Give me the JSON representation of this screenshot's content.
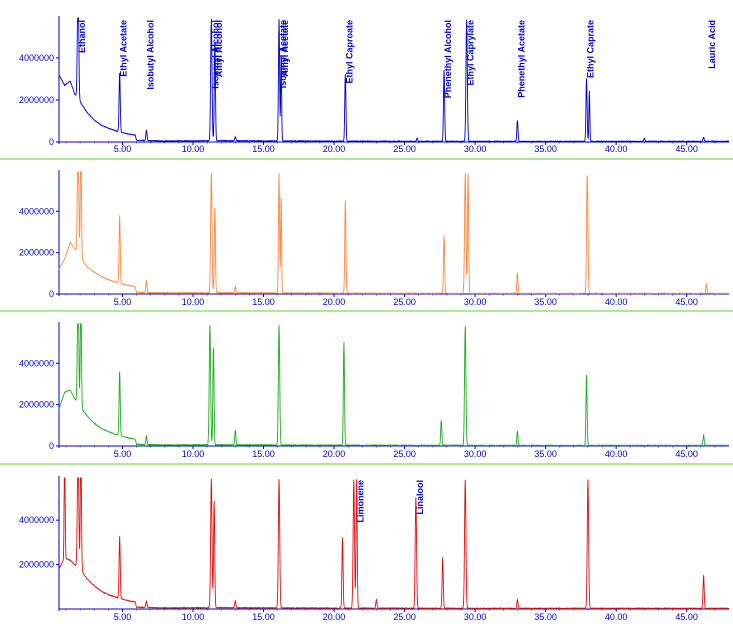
{
  "chart_data": [
    {
      "type": "line",
      "series": [
        {
          "color": "#0000cc",
          "baseline_points": [
            [
              0.5,
              3200000
            ],
            [
              0.9,
              2700000
            ],
            [
              1.3,
              2900000
            ],
            [
              1.6,
              2300000
            ],
            [
              2.0,
              1900000
            ],
            [
              2.5,
              1400000
            ],
            [
              3.0,
              1050000
            ],
            [
              3.5,
              800000
            ],
            [
              4.0,
              650000
            ],
            [
              4.5,
              540000
            ],
            [
              5.0,
              450000
            ],
            [
              5.5,
              370000
            ],
            [
              5.9,
              330000
            ],
            [
              6.0,
              80000
            ],
            [
              8,
              50000
            ],
            [
              12,
              60000
            ],
            [
              20,
              40000
            ],
            [
              30,
              30000
            ],
            [
              40,
              30000
            ],
            [
              47.5,
              30000
            ]
          ],
          "peaks": [
            [
              1.85,
              5800000,
              0.12
            ],
            [
              4.8,
              2800000,
              0.1
            ],
            [
              6.7,
              500000,
              0.1
            ],
            [
              11.3,
              5800000,
              0.12
            ],
            [
              11.55,
              4800000,
              0.1
            ],
            [
              13.0,
              200000,
              0.1
            ],
            [
              16.1,
              5800000,
              0.1
            ],
            [
              16.25,
              4200000,
              0.08
            ],
            [
              20.8,
              3200000,
              0.1
            ],
            [
              25.9,
              150000,
              0.1
            ],
            [
              27.8,
              3400000,
              0.1
            ],
            [
              29.4,
              5800000,
              0.12
            ],
            [
              33.0,
              1000000,
              0.1
            ],
            [
              37.9,
              3000000,
              0.1
            ],
            [
              38.1,
              2400000,
              0.08
            ],
            [
              42.0,
              150000,
              0.1
            ],
            [
              46.2,
              200000,
              0.1
            ]
          ]
        }
      ],
      "x_ticks": [
        "5.00",
        "10.00",
        "15.00",
        "20.00",
        "25.00",
        "30.00",
        "35.00",
        "40.00",
        "45.00"
      ],
      "x_tick_values": [
        5,
        10,
        15,
        20,
        25,
        30,
        35,
        40,
        45
      ],
      "y_ticks": [
        "0",
        "2000000",
        "4000000"
      ],
      "y_tick_values": [
        0,
        2000000,
        4000000
      ],
      "xlim": [
        0.5,
        48
      ],
      "ylim": [
        0,
        5900000
      ],
      "labels": [
        {
          "text": "Ethanol",
          "x": 1.85
        },
        {
          "text": "Ethyl Acetate",
          "x": 4.8
        },
        {
          "text": "Isobutyl Alcohol",
          "x": 6.7
        },
        {
          "text": "Isoamyl Alcohol",
          "x": 11.3
        },
        {
          "text": "Amyl Alcohol",
          "x": 11.55
        },
        {
          "text": "Isoamyl Acetate",
          "x": 16.1
        },
        {
          "text": "Amyl Acetate",
          "x": 16.25
        },
        {
          "text": "Ethyl Caproate",
          "x": 20.8
        },
        {
          "text": "Phenethyl Alcohol",
          "x": 27.8
        },
        {
          "text": "Ethyl Caprylate",
          "x": 29.4
        },
        {
          "text": "Phenethyl Acetate",
          "x": 33.0
        },
        {
          "text": "Ethyl Caprate",
          "x": 37.9
        },
        {
          "text": "Lauric Acid",
          "x": 46.5
        }
      ]
    },
    {
      "type": "line",
      "series": [
        {
          "color": "#ff8844",
          "baseline_points": [
            [
              0.5,
              1200000
            ],
            [
              0.9,
              1700000
            ],
            [
              1.3,
              2500000
            ],
            [
              1.6,
              2200000
            ],
            [
              2.0,
              1800000
            ],
            [
              2.5,
              1300000
            ],
            [
              3.0,
              1050000
            ],
            [
              3.5,
              850000
            ],
            [
              4.0,
              700000
            ],
            [
              4.5,
              580000
            ],
            [
              5.0,
              480000
            ],
            [
              5.5,
              400000
            ],
            [
              5.9,
              350000
            ],
            [
              6.0,
              80000
            ],
            [
              8,
              50000
            ],
            [
              12,
              60000
            ],
            [
              20,
              40000
            ],
            [
              30,
              30000
            ],
            [
              40,
              30000
            ],
            [
              47.5,
              30000
            ]
          ],
          "peaks": [
            [
              1.85,
              5800000,
              0.12
            ],
            [
              2.05,
              5800000,
              0.1
            ],
            [
              4.8,
              3300000,
              0.1
            ],
            [
              6.7,
              600000,
              0.1
            ],
            [
              11.3,
              5800000,
              0.12
            ],
            [
              11.55,
              4200000,
              0.1
            ],
            [
              13.0,
              300000,
              0.1
            ],
            [
              16.1,
              5800000,
              0.1
            ],
            [
              16.25,
              4800000,
              0.08
            ],
            [
              20.8,
              4500000,
              0.1
            ],
            [
              27.8,
              2800000,
              0.1
            ],
            [
              29.3,
              5800000,
              0.12
            ],
            [
              29.5,
              5800000,
              0.1
            ],
            [
              33.0,
              1000000,
              0.1
            ],
            [
              37.95,
              5800000,
              0.12
            ],
            [
              46.4,
              500000,
              0.1
            ]
          ]
        }
      ],
      "x_ticks": [
        "5.00",
        "10.00",
        "15.00",
        "20.00",
        "25.00",
        "30.00",
        "35.00",
        "40.00",
        "45.00"
      ],
      "x_tick_values": [
        5,
        10,
        15,
        20,
        25,
        30,
        35,
        40,
        45
      ],
      "y_ticks": [
        "0",
        "2000000",
        "4000000"
      ],
      "y_tick_values": [
        0,
        2000000,
        4000000
      ],
      "xlim": [
        0.5,
        48
      ],
      "ylim": [
        0,
        5900000
      ],
      "labels": []
    },
    {
      "type": "line",
      "series": [
        {
          "color": "#22aa22",
          "baseline_points": [
            [
              0.5,
              1800000
            ],
            [
              0.9,
              2600000
            ],
            [
              1.3,
              2700000
            ],
            [
              1.6,
              2300000
            ],
            [
              2.0,
              1900000
            ],
            [
              2.5,
              1450000
            ],
            [
              3.0,
              1100000
            ],
            [
              3.5,
              850000
            ],
            [
              4.0,
              700000
            ],
            [
              4.5,
              560000
            ],
            [
              5.0,
              470000
            ],
            [
              5.5,
              380000
            ],
            [
              5.9,
              330000
            ],
            [
              6.0,
              80000
            ],
            [
              8,
              50000
            ],
            [
              12,
              60000
            ],
            [
              20,
              40000
            ],
            [
              30,
              30000
            ],
            [
              40,
              30000
            ],
            [
              47.5,
              30000
            ]
          ],
          "peaks": [
            [
              1.85,
              5800000,
              0.12
            ],
            [
              2.05,
              5800000,
              0.1
            ],
            [
              4.8,
              3100000,
              0.1
            ],
            [
              6.7,
              400000,
              0.1
            ],
            [
              11.2,
              5800000,
              0.12
            ],
            [
              11.45,
              4800000,
              0.1
            ],
            [
              13.0,
              700000,
              0.1
            ],
            [
              16.1,
              5800000,
              0.12
            ],
            [
              20.7,
              5000000,
              0.1
            ],
            [
              27.6,
              1200000,
              0.1
            ],
            [
              29.3,
              5800000,
              0.12
            ],
            [
              33.0,
              700000,
              0.1
            ],
            [
              37.9,
              3400000,
              0.1
            ],
            [
              46.2,
              500000,
              0.1
            ]
          ]
        }
      ],
      "x_ticks": [
        "5.00",
        "10.00",
        "15.00",
        "20.00",
        "25.00",
        "30.00",
        "35.00",
        "40.00",
        "45.00"
      ],
      "x_tick_values": [
        5,
        10,
        15,
        20,
        25,
        30,
        35,
        40,
        45
      ],
      "y_ticks": [
        "0",
        "2000000",
        "4000000"
      ],
      "y_tick_values": [
        0,
        2000000,
        4000000
      ],
      "xlim": [
        0.5,
        48
      ],
      "ylim": [
        0,
        5900000
      ],
      "labels": []
    },
    {
      "type": "line",
      "series": [
        {
          "color": "#dd1111",
          "baseline_points": [
            [
              0.5,
              1800000
            ],
            [
              0.9,
              2300000
            ],
            [
              1.3,
              2200000
            ],
            [
              1.6,
              2000000
            ],
            [
              2.0,
              1800000
            ],
            [
              2.5,
              1350000
            ],
            [
              3.0,
              1050000
            ],
            [
              3.5,
              800000
            ],
            [
              4.0,
              650000
            ],
            [
              4.5,
              540000
            ],
            [
              5.0,
              440000
            ],
            [
              5.5,
              360000
            ],
            [
              5.9,
              320000
            ],
            [
              6.0,
              80000
            ],
            [
              8,
              50000
            ],
            [
              12,
              60000
            ],
            [
              20,
              40000
            ],
            [
              30,
              30000
            ],
            [
              40,
              30000
            ],
            [
              47.5,
              30000
            ]
          ],
          "peaks": [
            [
              0.9,
              5800000,
              0.08
            ],
            [
              1.85,
              5800000,
              0.12
            ],
            [
              2.05,
              5800000,
              0.1
            ],
            [
              4.8,
              2800000,
              0.1
            ],
            [
              6.7,
              300000,
              0.1
            ],
            [
              11.3,
              5800000,
              0.12
            ],
            [
              11.5,
              4800000,
              0.1
            ],
            [
              13.0,
              300000,
              0.1
            ],
            [
              16.1,
              5800000,
              0.12
            ],
            [
              20.6,
              3200000,
              0.1
            ],
            [
              21.4,
              5800000,
              0.12
            ],
            [
              21.6,
              5800000,
              0.1
            ],
            [
              23.0,
              400000,
              0.1
            ],
            [
              25.8,
              5000000,
              0.12
            ],
            [
              27.7,
              2300000,
              0.1
            ],
            [
              29.3,
              5800000,
              0.12
            ],
            [
              33.0,
              400000,
              0.1
            ],
            [
              38.0,
              5800000,
              0.12
            ],
            [
              46.2,
              1500000,
              0.1
            ]
          ]
        }
      ],
      "x_ticks": [
        "5.00",
        "10.00",
        "15.00",
        "20.00",
        "25.00",
        "30.00",
        "35.00",
        "40.00",
        "45.00"
      ],
      "x_tick_values": [
        5,
        10,
        15,
        20,
        25,
        30,
        35,
        40,
        45
      ],
      "y_ticks": [
        "2000000",
        "4000000"
      ],
      "y_tick_values": [
        2000000,
        4000000
      ],
      "xlim": [
        0.5,
        48
      ],
      "ylim": [
        0,
        5900000
      ],
      "labels": [
        {
          "text": "Limonene",
          "x": 21.6
        },
        {
          "text": "Linalool",
          "x": 25.8
        }
      ]
    }
  ]
}
